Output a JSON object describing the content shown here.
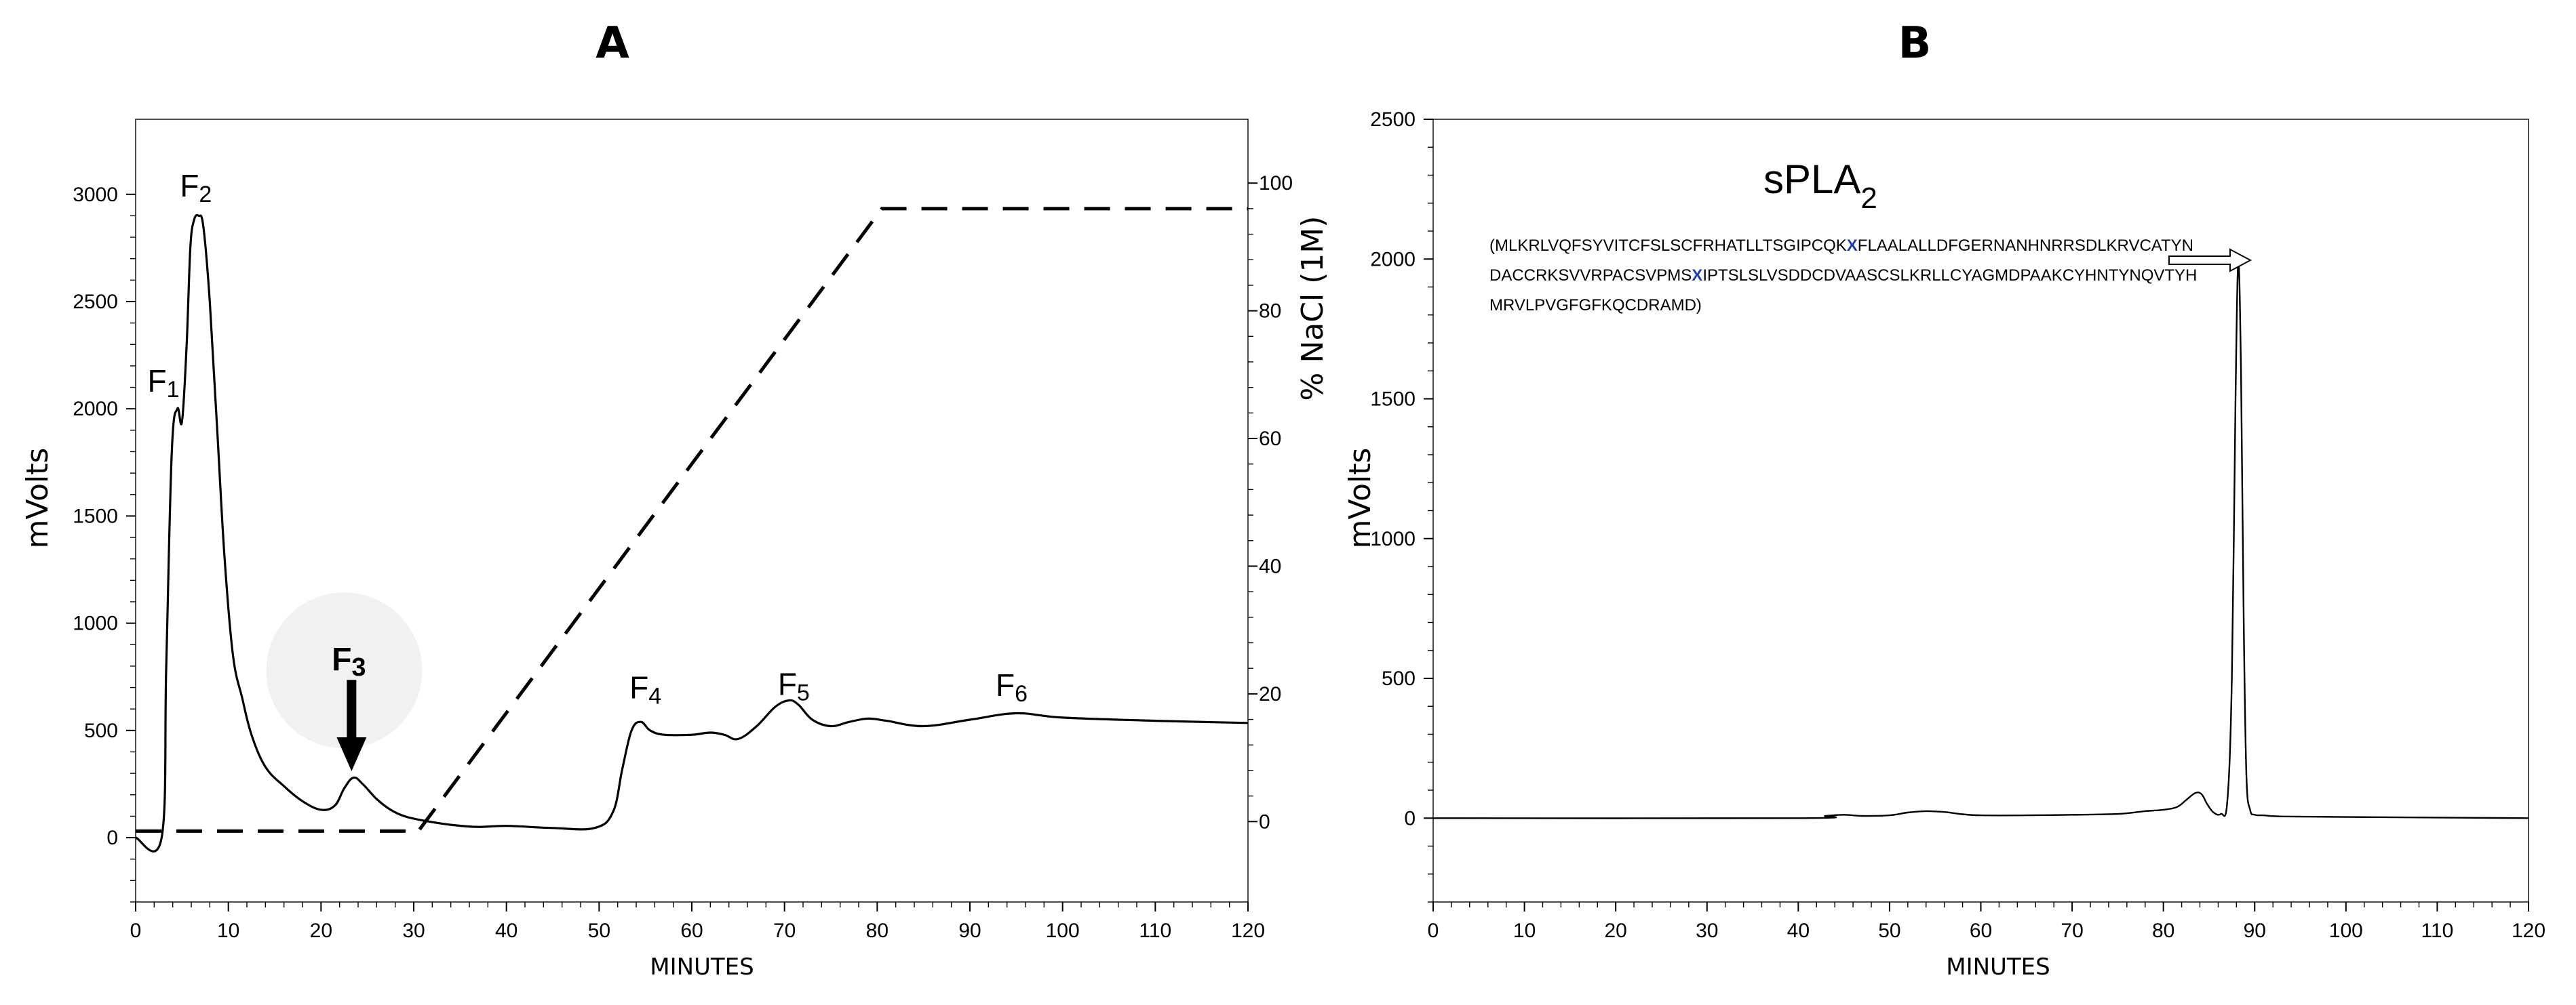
{
  "chart_data": [
    {
      "panel": "A",
      "type": "line",
      "xlabel": "MINUTES",
      "ylabel": "mVolts",
      "y2label": "% NaCl (1M)",
      "xlim": [
        0,
        120
      ],
      "ylim": [
        -300,
        3350
      ],
      "y2lim": [
        -12.6,
        110
      ],
      "x_ticks": [
        0,
        10,
        20,
        30,
        40,
        50,
        60,
        70,
        80,
        90,
        100,
        110,
        120
      ],
      "y_ticks": [
        0,
        500,
        1000,
        1500,
        2000,
        2500,
        3000
      ],
      "y2_ticks": [
        0,
        20,
        40,
        60,
        80,
        100
      ],
      "series": [
        {
          "style": "solid",
          "x": [
            0,
            2.8,
            3.3,
            3.9,
            4.5,
            5.0,
            5.5,
            5.9,
            6.3,
            6.8,
            7.3,
            8.0,
            8.8,
            9.6,
            10.5,
            11.5,
            12.5,
            14.0,
            16,
            18,
            20,
            21.5,
            22.5,
            23.5,
            24.5,
            26,
            27.5,
            29,
            31,
            34,
            37,
            40,
            45,
            49.5,
            51.5,
            52.5,
            53.5,
            54.5,
            55.5,
            57,
            60,
            62,
            63.5,
            65,
            67,
            69,
            70.5,
            71.5,
            73,
            75,
            77,
            79,
            81,
            85,
            90,
            95,
            100,
            110,
            120
          ],
          "y": [
            0,
            0,
            800,
            1800,
            2000,
            1940,
            2300,
            2750,
            2880,
            2900,
            2850,
            2500,
            1900,
            1300,
            850,
            650,
            480,
            330,
            240,
            170,
            130,
            150,
            230,
            280,
            250,
            180,
            130,
            100,
            80,
            60,
            50,
            55,
            45,
            45,
            120,
            320,
            500,
            540,
            500,
            480,
            480,
            490,
            480,
            460,
            520,
            610,
            640,
            620,
            550,
            520,
            540,
            555,
            545,
            520,
            550,
            580,
            560,
            545,
            535
          ]
        },
        {
          "style": "dashed",
          "axis": "right",
          "x": [
            0,
            30.5,
            80.5,
            120
          ],
          "y": [
            -1.5,
            -1.5,
            96,
            96
          ]
        }
      ],
      "annotations": [
        {
          "label": "F",
          "sub": "1",
          "x": 3.0,
          "y": 2080
        },
        {
          "label": "F",
          "sub": "2",
          "x": 6.5,
          "y": 2990
        },
        {
          "label": "F",
          "sub": "3",
          "x": 23.0,
          "y": 780,
          "bold": true,
          "arrow": true,
          "arrow_to_y": 310
        },
        {
          "label": "F",
          "sub": "4",
          "x": 55.0,
          "y": 650
        },
        {
          "label": "F",
          "sub": "5",
          "x": 71.0,
          "y": 665
        },
        {
          "label": "F",
          "sub": "6",
          "x": 94.5,
          "y": 660
        }
      ]
    },
    {
      "panel": "B",
      "type": "line",
      "xlabel": "MINUTES",
      "ylabel": "mVolts",
      "xlim": [
        0,
        120
      ],
      "ylim": [
        -300,
        2500
      ],
      "x_ticks": [
        0,
        10,
        20,
        30,
        40,
        50,
        60,
        70,
        80,
        90,
        100,
        110,
        120
      ],
      "y_ticks": [
        0,
        500,
        1000,
        1500,
        2000,
        2500
      ],
      "series": [
        {
          "style": "solid",
          "x": [
            0,
            40,
            43,
            45,
            47,
            50,
            52,
            54,
            56,
            58,
            60,
            65,
            70,
            75,
            78,
            80,
            81.5,
            82.5,
            83.5,
            84.2,
            84.8,
            85.5,
            86.3,
            87.0,
            87.5,
            87.9,
            88.2,
            88.5,
            88.8,
            89.1,
            89.5,
            90.0,
            91,
            93,
            100,
            110,
            120
          ],
          "y": [
            0,
            0,
            8,
            12,
            8,
            10,
            20,
            25,
            22,
            14,
            10,
            10,
            12,
            15,
            25,
            30,
            40,
            65,
            90,
            85,
            50,
            20,
            15,
            60,
            500,
            1500,
            1990,
            1600,
            700,
            150,
            30,
            12,
            10,
            6,
            4,
            2,
            0
          ]
        }
      ],
      "annotation": {
        "name": "sPLA",
        "sub": "2",
        "sequence_lines": [
          [
            "(MLKRLVQFSYVITCFSLSCFRHATLLTSGIPCQK",
            "X",
            "FLAALALLDFGERNANHNRRSDLKRVCATYN"
          ],
          [
            "DACCRKSVVRPACSVPMS",
            "X",
            "IPTSLSLVSDDCDVAASCSLKRLLCYAGMDPAAKCYHNTYNQVTYH"
          ],
          [
            "MRVLPVGFGFKQCDRAMD)",
            "",
            ""
          ]
        ]
      }
    }
  ],
  "panels": {
    "a": {
      "label": "A"
    },
    "b": {
      "label": "B"
    }
  },
  "colors": {
    "line": "#000000",
    "seq_highlight": "#1f3fa8"
  }
}
